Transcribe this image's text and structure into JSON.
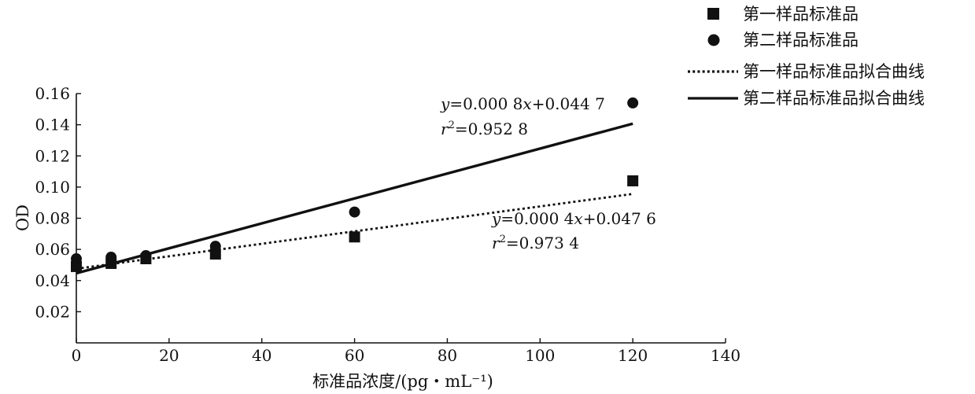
{
  "chart_data": {
    "type": "scatter",
    "xlabel": "标准品浓度/(pg・mL⁻¹)",
    "ylabel": "OD",
    "xlim": [
      0,
      140
    ],
    "ylim": [
      0,
      0.16
    ],
    "xticks": [
      "0",
      "20",
      "40",
      "60",
      "80",
      "100",
      "120",
      "140"
    ],
    "yticks": [
      "0.02",
      "0.04",
      "0.06",
      "0.08",
      "0.10",
      "0.12",
      "0.14",
      "0.16"
    ],
    "grid": false,
    "legend_position": "top-right",
    "series": [
      {
        "name": "第一样品标准品",
        "marker": "square",
        "color": "#111111",
        "x": [
          0,
          7.5,
          15,
          30,
          60,
          120
        ],
        "y": [
          0.049,
          0.051,
          0.054,
          0.057,
          0.068,
          0.104
        ]
      },
      {
        "name": "第二样品标准品",
        "marker": "circle",
        "color": "#111111",
        "x": [
          0,
          7.5,
          15,
          30,
          60,
          120
        ],
        "y": [
          0.054,
          0.055,
          0.056,
          0.062,
          0.084,
          0.154
        ]
      }
    ],
    "fits": [
      {
        "name": "第一样品标准品拟合曲线",
        "style": "dotted",
        "slope": 0.0004,
        "intercept": 0.0476,
        "x_range": [
          0,
          120
        ],
        "equation": {
          "y_var": "y",
          "text1": "=0.000 4",
          "x_var": "x",
          "text2": "+0.047 6"
        },
        "r2": {
          "r_var": "r",
          "sup": "2",
          "text": "=0.973 4"
        }
      },
      {
        "name": "第二样品标准品拟合曲线",
        "style": "solid",
        "slope": 0.0008,
        "intercept": 0.0447,
        "x_range": [
          0,
          120
        ],
        "equation": {
          "y_var": "y",
          "text1": "=0.000 8",
          "x_var": "x",
          "text2": "+0.044 7"
        },
        "r2": {
          "r_var": "r",
          "sup": "2",
          "text": "=0.952 8"
        }
      }
    ]
  }
}
